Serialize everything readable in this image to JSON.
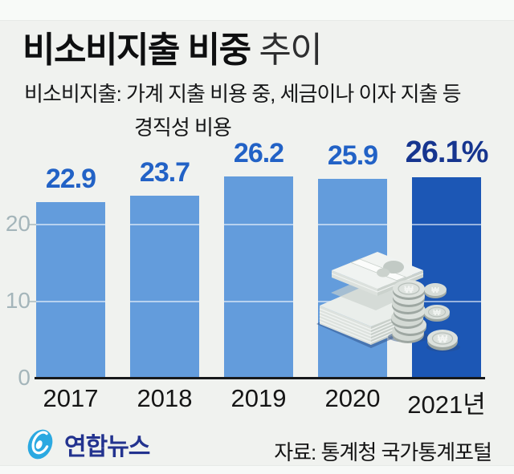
{
  "header": {
    "title_main": "비소비지출 비중",
    "title_sub": " 추이",
    "subtitle_line1": "비소비지출: 가계 지출 비용 중, 세금이나 이자 지출 등",
    "subtitle_line2": "경직성 비용"
  },
  "chart_data": {
    "type": "bar",
    "categories": [
      "2017",
      "2018",
      "2019",
      "2020",
      "2021년"
    ],
    "values": [
      22.9,
      23.7,
      26.2,
      25.9,
      26.1
    ],
    "value_labels": [
      "22.9",
      "23.7",
      "26.2",
      "25.9",
      "26.1%"
    ],
    "unit": "%",
    "ylim": [
      0,
      28
    ],
    "yticks": [
      0,
      10,
      20
    ],
    "grid": "horizontal-overlay-on-bars",
    "legend": "none",
    "highlight_index": 4,
    "colors": {
      "bar": "#639CDC",
      "bar_highlight": "#1C57B5",
      "value_label": "#2262C6",
      "value_label_highlight": "#16358F",
      "axis_line": "#17191B",
      "ytick_label": "#A4B5BA",
      "xtick_label": "#151515"
    }
  },
  "footer": {
    "logo_text": "연합뉴스",
    "source": "자료: 통계청 국가통계포털"
  },
  "icons": {
    "money_illustration": "banknote-stacks-and-won-coins",
    "logo_icon": "yonhap-swirl"
  }
}
